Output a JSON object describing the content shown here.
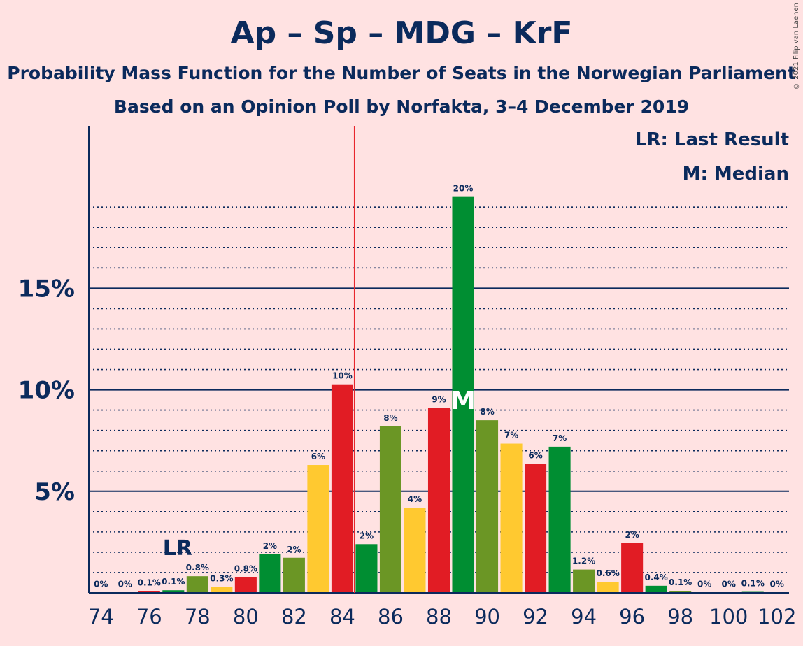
{
  "chart_data": {
    "type": "bar",
    "title": "Ap – Sp – MDG – KrF",
    "subtitle": "Probability Mass Function for the Number of Seats in the Norwegian Parliament",
    "subtitle2": "Based on an Opinion Poll by Norfakta, 3–4 December 2019",
    "copyright": "© 2021 Filip van Laenen",
    "legend": {
      "lr": "LR: Last Result",
      "m": "M: Median",
      "placement": "top-right"
    },
    "last_result_label": "LR",
    "median_label": "M",
    "last_result_seat": 77,
    "median_seat": 89,
    "majority_line_seat": 84.5,
    "ylim": [
      0,
      23
    ],
    "yticks": [
      {
        "value": 5,
        "label": "5%"
      },
      {
        "value": 10,
        "label": "10%"
      },
      {
        "value": 15,
        "label": "15%"
      }
    ],
    "xlim": [
      73.5,
      102.5
    ],
    "xtick_labels": [
      "74",
      "76",
      "78",
      "80",
      "82",
      "84",
      "86",
      "88",
      "90",
      "92",
      "94",
      "96",
      "98",
      "100",
      "102"
    ],
    "xticks": [
      74,
      76,
      78,
      80,
      82,
      84,
      86,
      88,
      90,
      92,
      94,
      96,
      98,
      100,
      102
    ],
    "colors": {
      "background": "#FFE2E2",
      "axis": "#0B2A5C",
      "majority": "#E8262D",
      "palette": [
        "#E11C24",
        "#008E32",
        "#6B9625",
        "#FFC930"
      ]
    },
    "bars": [
      {
        "seat": 74,
        "value": 0.02,
        "label": "0%",
        "color": "#E11C24"
      },
      {
        "seat": 75,
        "value": 0.02,
        "label": "0%",
        "color": "#008E32"
      },
      {
        "seat": 76,
        "value": 0.09,
        "label": "0.1%",
        "color": "#E11C24"
      },
      {
        "seat": 77,
        "value": 0.13,
        "label": "0.1%",
        "color": "#008E32"
      },
      {
        "seat": 78,
        "value": 0.82,
        "label": "0.8%",
        "color": "#6B9625"
      },
      {
        "seat": 79,
        "value": 0.3,
        "label": "0.3%",
        "color": "#FFC930"
      },
      {
        "seat": 80,
        "value": 0.78,
        "label": "0.8%",
        "color": "#E11C24"
      },
      {
        "seat": 81,
        "value": 1.9,
        "label": "2%",
        "color": "#008E32"
      },
      {
        "seat": 82,
        "value": 1.73,
        "label": "2%",
        "color": "#6B9625"
      },
      {
        "seat": 83,
        "value": 6.3,
        "label": "6%",
        "color": "#FFC930"
      },
      {
        "seat": 84,
        "value": 10.27,
        "label": "10%",
        "color": "#E11C24"
      },
      {
        "seat": 85,
        "value": 2.4,
        "label": "2%",
        "color": "#008E32"
      },
      {
        "seat": 86,
        "value": 8.2,
        "label": "8%",
        "color": "#6B9625"
      },
      {
        "seat": 87,
        "value": 4.2,
        "label": "4%",
        "color": "#FFC930"
      },
      {
        "seat": 88,
        "value": 9.1,
        "label": "9%",
        "color": "#E11C24"
      },
      {
        "seat": 89,
        "value": 19.5,
        "label": "20%",
        "color": "#008E32"
      },
      {
        "seat": 90,
        "value": 8.5,
        "label": "8%",
        "color": "#6B9625"
      },
      {
        "seat": 91,
        "value": 7.35,
        "label": "7%",
        "color": "#FFC930"
      },
      {
        "seat": 92,
        "value": 6.35,
        "label": "6%",
        "color": "#E11C24"
      },
      {
        "seat": 93,
        "value": 7.2,
        "label": "7%",
        "color": "#008E32"
      },
      {
        "seat": 94,
        "value": 1.15,
        "label": "1.2%",
        "color": "#6B9625"
      },
      {
        "seat": 95,
        "value": 0.55,
        "label": "0.6%",
        "color": "#FFC930"
      },
      {
        "seat": 96,
        "value": 2.45,
        "label": "2%",
        "color": "#E11C24"
      },
      {
        "seat": 97,
        "value": 0.35,
        "label": "0.4%",
        "color": "#008E32"
      },
      {
        "seat": 98,
        "value": 0.1,
        "label": "0.1%",
        "color": "#6B9625"
      },
      {
        "seat": 99,
        "value": 0.02,
        "label": "0%",
        "color": "#FFC930"
      },
      {
        "seat": 100,
        "value": 0.02,
        "label": "0%",
        "color": "#E11C24"
      },
      {
        "seat": 101,
        "value": 0.05,
        "label": "0.1%",
        "color": "#008E32"
      },
      {
        "seat": 102,
        "value": 0.01,
        "label": "0%",
        "color": "#6B9625"
      }
    ]
  }
}
